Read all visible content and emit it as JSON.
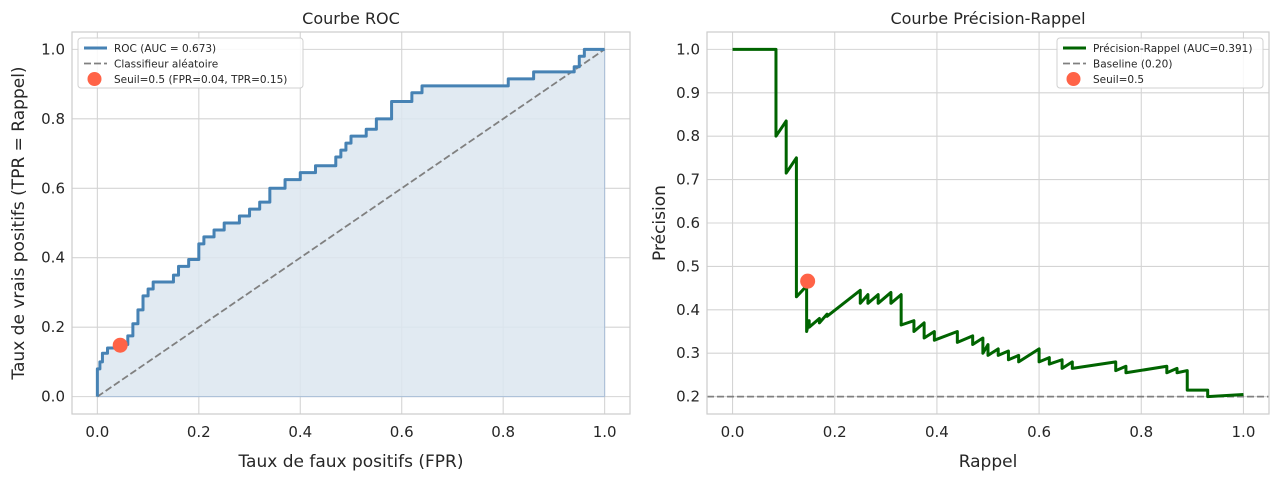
{
  "chart_data": [
    {
      "type": "line",
      "title": "Courbe ROC",
      "xlabel": "Taux de faux positifs (FPR)",
      "ylabel": "Taux de vrais positifs (TPR = Rappel)",
      "xlim": [
        -0.05,
        1.05
      ],
      "ylim": [
        -0.05,
        1.05
      ],
      "xticks": [
        "0.0",
        "0.2",
        "0.4",
        "0.6",
        "0.8",
        "1.0"
      ],
      "yticks": [
        "0.0",
        "0.2",
        "0.4",
        "0.6",
        "0.8",
        "1.0"
      ],
      "grid": true,
      "legend_position": "top-left",
      "series": [
        {
          "name": "ROC (AUC = 0.673)",
          "style": "step-line-filled",
          "color": "#4682b4",
          "fill_color": "#dce6f0",
          "x": [
            0,
            0,
            0.005,
            0.005,
            0.01,
            0.01,
            0.02,
            0.02,
            0.04,
            0.04,
            0.06,
            0.06,
            0.07,
            0.07,
            0.08,
            0.08,
            0.09,
            0.09,
            0.1,
            0.1,
            0.11,
            0.11,
            0.15,
            0.15,
            0.16,
            0.16,
            0.18,
            0.18,
            0.2,
            0.2,
            0.21,
            0.21,
            0.23,
            0.23,
            0.25,
            0.25,
            0.28,
            0.28,
            0.3,
            0.3,
            0.32,
            0.32,
            0.34,
            0.34,
            0.37,
            0.37,
            0.4,
            0.4,
            0.43,
            0.43,
            0.47,
            0.47,
            0.48,
            0.48,
            0.49,
            0.49,
            0.5,
            0.5,
            0.53,
            0.53,
            0.55,
            0.55,
            0.58,
            0.58,
            0.62,
            0.62,
            0.64,
            0.64,
            0.81,
            0.81,
            0.86,
            0.86,
            0.94,
            0.94,
            0.95,
            0.95,
            0.96,
            0.96,
            1.0
          ],
          "y": [
            0,
            0.08,
            0.08,
            0.1,
            0.1,
            0.125,
            0.125,
            0.14,
            0.14,
            0.15,
            0.15,
            0.175,
            0.175,
            0.21,
            0.21,
            0.25,
            0.25,
            0.29,
            0.29,
            0.31,
            0.31,
            0.33,
            0.33,
            0.35,
            0.35,
            0.375,
            0.375,
            0.395,
            0.395,
            0.44,
            0.44,
            0.46,
            0.46,
            0.48,
            0.48,
            0.5,
            0.5,
            0.52,
            0.52,
            0.54,
            0.54,
            0.56,
            0.56,
            0.6,
            0.6,
            0.625,
            0.625,
            0.645,
            0.645,
            0.665,
            0.665,
            0.69,
            0.69,
            0.71,
            0.71,
            0.73,
            0.73,
            0.75,
            0.75,
            0.77,
            0.77,
            0.8,
            0.8,
            0.85,
            0.85,
            0.875,
            0.875,
            0.895,
            0.895,
            0.915,
            0.915,
            0.935,
            0.935,
            0.95,
            0.95,
            0.98,
            0.98,
            1.0,
            1.0
          ]
        },
        {
          "name": "Classifieur aléatoire",
          "style": "dashed",
          "color": "#808080",
          "x": [
            0,
            1
          ],
          "y": [
            0,
            1
          ]
        }
      ],
      "marker": {
        "name": "Seuil=0.5 (FPR=0.04, TPR=0.15)",
        "x": 0.045,
        "y": 0.148,
        "color": "#ff6347"
      }
    },
    {
      "type": "line",
      "title": "Courbe Précision-Rappel",
      "xlabel": "Rappel",
      "ylabel": "Précision",
      "xlim": [
        -0.05,
        1.05
      ],
      "ylim": [
        0.16,
        1.04
      ],
      "xticks": [
        "0.0",
        "0.2",
        "0.4",
        "0.6",
        "0.8",
        "1.0"
      ],
      "yticks": [
        "0.2",
        "0.3",
        "0.4",
        "0.5",
        "0.6",
        "0.7",
        "0.8",
        "0.9",
        "1.0"
      ],
      "grid": true,
      "legend_position": "top-right",
      "series": [
        {
          "name": "Précision-Rappel (AUC=0.391)",
          "style": "line",
          "color": "#006400",
          "x": [
            0,
            0.085,
            0.085,
            0.105,
            0.105,
            0.125,
            0.125,
            0.145,
            0.145,
            0.15,
            0.15,
            0.17,
            0.17,
            0.185,
            0.185,
            0.25,
            0.25,
            0.265,
            0.265,
            0.285,
            0.285,
            0.31,
            0.31,
            0.33,
            0.33,
            0.355,
            0.355,
            0.375,
            0.375,
            0.395,
            0.395,
            0.44,
            0.44,
            0.47,
            0.47,
            0.49,
            0.49,
            0.5,
            0.5,
            0.52,
            0.52,
            0.54,
            0.54,
            0.56,
            0.56,
            0.6,
            0.6,
            0.62,
            0.62,
            0.645,
            0.645,
            0.665,
            0.665,
            0.75,
            0.75,
            0.77,
            0.77,
            0.85,
            0.85,
            0.87,
            0.87,
            0.89,
            0.89,
            0.93,
            0.93,
            1.0
          ],
          "y": [
            1.0,
            1.0,
            0.8,
            0.835,
            0.715,
            0.75,
            0.43,
            0.455,
            0.35,
            0.375,
            0.36,
            0.38,
            0.37,
            0.39,
            0.385,
            0.445,
            0.415,
            0.435,
            0.415,
            0.435,
            0.415,
            0.44,
            0.415,
            0.435,
            0.365,
            0.375,
            0.35,
            0.37,
            0.335,
            0.35,
            0.33,
            0.35,
            0.325,
            0.34,
            0.32,
            0.335,
            0.3,
            0.32,
            0.295,
            0.31,
            0.295,
            0.305,
            0.285,
            0.295,
            0.28,
            0.31,
            0.28,
            0.29,
            0.275,
            0.285,
            0.265,
            0.28,
            0.265,
            0.28,
            0.26,
            0.27,
            0.255,
            0.27,
            0.255,
            0.265,
            0.255,
            0.26,
            0.215,
            0.215,
            0.2,
            0.205
          ]
        },
        {
          "name": "Baseline (0.20)",
          "style": "dashed",
          "color": "#808080",
          "x": [
            -0.05,
            1.05
          ],
          "y": [
            0.2,
            0.2
          ]
        }
      ],
      "marker": {
        "name": "Seuil=0.5",
        "x": 0.147,
        "y": 0.466,
        "color": "#ff6347"
      }
    }
  ]
}
